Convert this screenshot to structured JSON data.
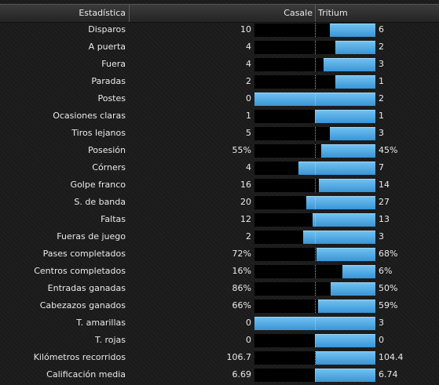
{
  "header": {
    "stat": "Estadística",
    "home": "Casale",
    "away": "Tritium"
  },
  "colors": {
    "bar_fill": "#4fa8e4",
    "bar_track": "#000000",
    "background": "#1c1c1c"
  },
  "rows": [
    {
      "label": "Disparos",
      "home": "10",
      "away": "6",
      "away_share": 0.375
    },
    {
      "label": "A puerta",
      "home": "4",
      "away": "2",
      "away_share": 0.333
    },
    {
      "label": "Fuera",
      "home": "4",
      "away": "3",
      "away_share": 0.429
    },
    {
      "label": "Paradas",
      "home": "2",
      "away": "1",
      "away_share": 0.333
    },
    {
      "label": "Postes",
      "home": "0",
      "away": "2",
      "away_share": 1.0
    },
    {
      "label": "Ocasiones claras",
      "home": "1",
      "away": "1",
      "away_share": 0.5
    },
    {
      "label": "Tiros lejanos",
      "home": "5",
      "away": "3",
      "away_share": 0.375
    },
    {
      "label": "Posesión",
      "home": "55%",
      "away": "45%",
      "away_share": 0.45
    },
    {
      "label": "Córners",
      "home": "4",
      "away": "7",
      "away_share": 0.636
    },
    {
      "label": "Golpe franco",
      "home": "16",
      "away": "14",
      "away_share": 0.467
    },
    {
      "label": "S. de banda",
      "home": "20",
      "away": "27",
      "away_share": 0.574
    },
    {
      "label": "Faltas",
      "home": "12",
      "away": "13",
      "away_share": 0.52
    },
    {
      "label": "Fueras de juego",
      "home": "2",
      "away": "3",
      "away_share": 0.6
    },
    {
      "label": "Pases completados",
      "home": "72%",
      "away": "68%",
      "away_share": 0.486
    },
    {
      "label": "Centros completados",
      "home": "16%",
      "away": "6%",
      "away_share": 0.273
    },
    {
      "label": "Entradas ganadas",
      "home": "86%",
      "away": "50%",
      "away_share": 0.368
    },
    {
      "label": "Cabezazos ganados",
      "home": "66%",
      "away": "59%",
      "away_share": 0.472
    },
    {
      "label": "T. amarillas",
      "home": "0",
      "away": "3",
      "away_share": 1.0
    },
    {
      "label": "T. rojas",
      "home": "0",
      "away": "0",
      "away_share": 0.5
    },
    {
      "label": "Kilómetros recorridos",
      "home": "106.7",
      "away": "104.4",
      "away_share": 0.495
    },
    {
      "label": "Calificación media",
      "home": "6.69",
      "away": "6.74",
      "away_share": 0.502
    }
  ]
}
